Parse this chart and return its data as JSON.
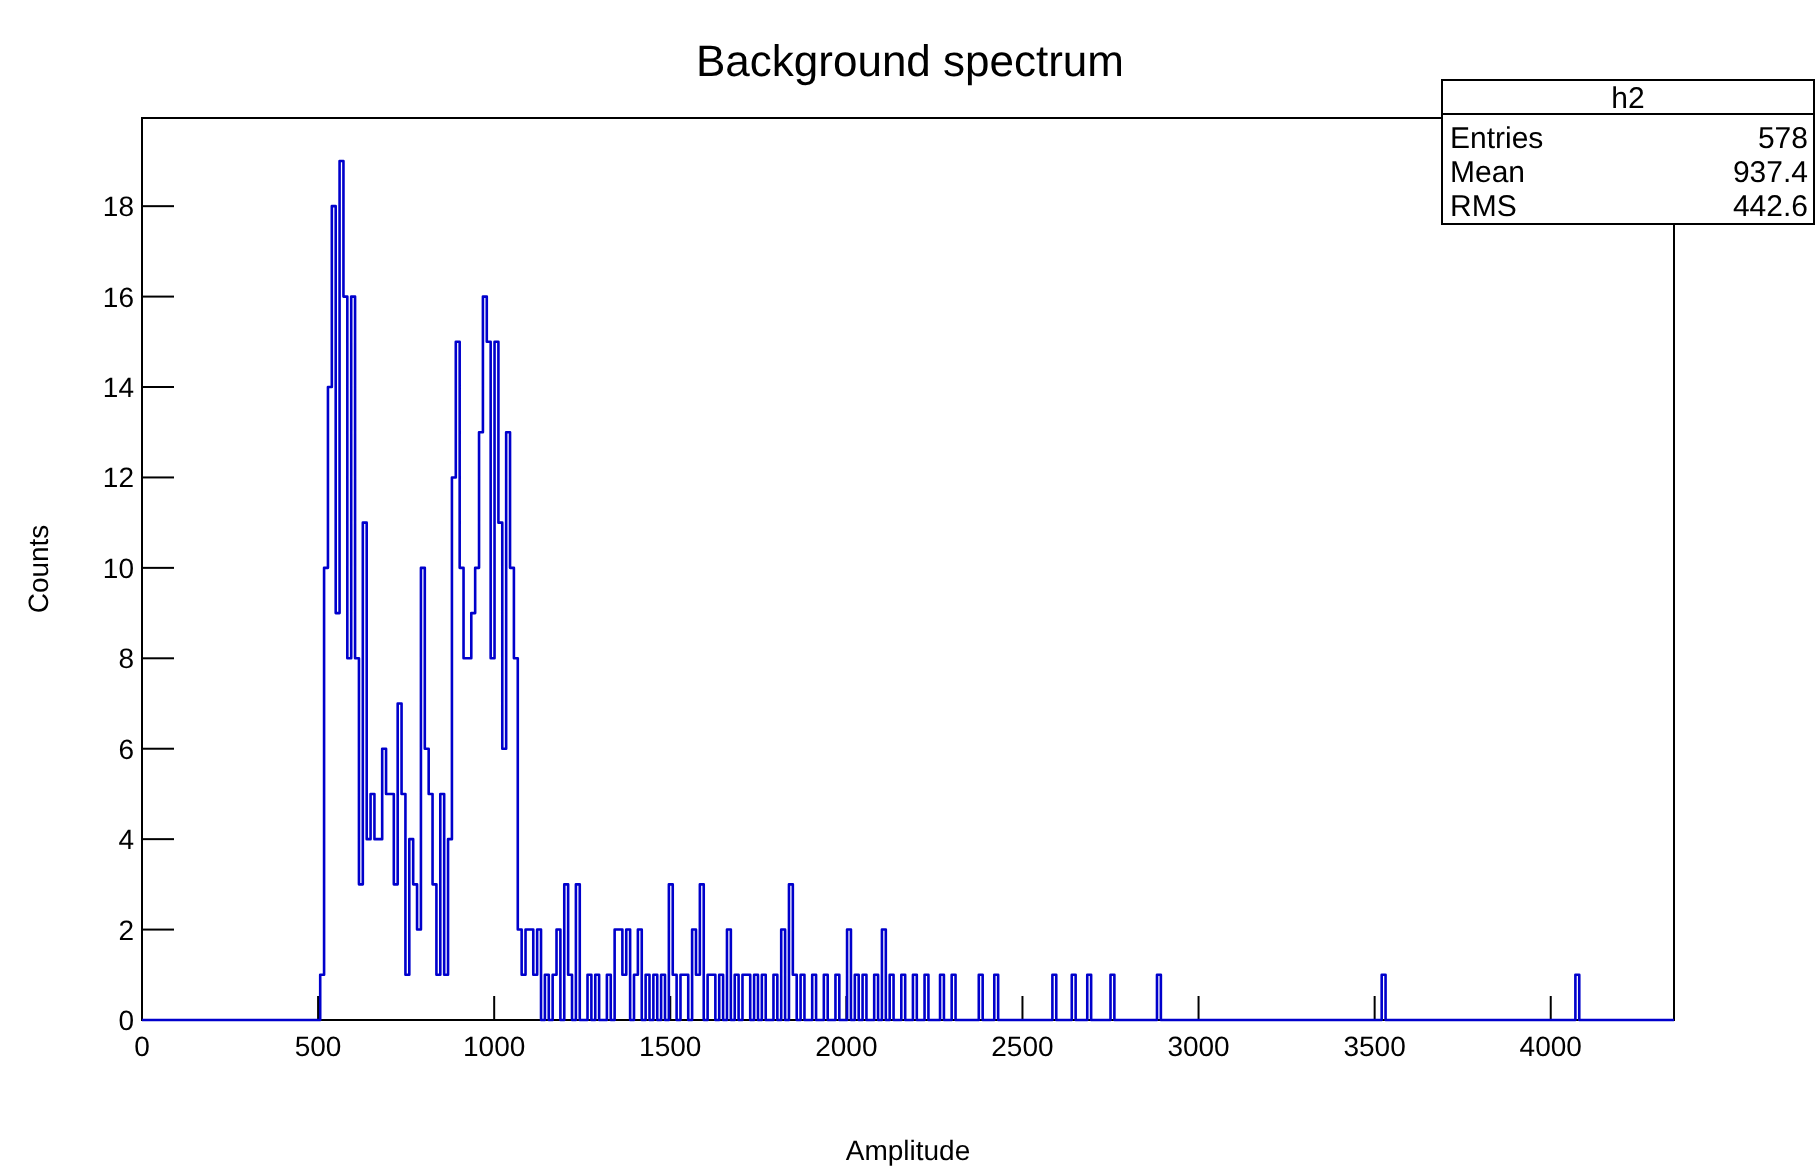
{
  "chart_data": {
    "type": "histogram",
    "title": "Background spectrum",
    "xlabel": "Amplitude",
    "ylabel": "Counts",
    "bins": [
      0,
      506,
      517,
      528,
      539,
      550,
      561,
      572,
      583,
      594,
      605,
      616,
      627,
      638,
      649,
      660,
      671,
      682,
      693,
      704,
      715,
      726,
      737,
      748,
      759,
      770,
      781,
      792,
      803,
      814,
      825,
      836,
      847,
      858,
      869,
      880,
      891,
      902,
      913,
      924,
      935,
      946,
      957,
      968,
      979,
      990,
      1001,
      1012,
      1023,
      1034,
      1045,
      1056,
      1067,
      1078,
      1089,
      1100,
      1111,
      1122,
      1133,
      1144,
      1155,
      1166,
      1177,
      1188,
      1199,
      1210,
      1221,
      1232,
      1243,
      1265,
      1276,
      1287,
      1298,
      1320,
      1331,
      1342,
      1353,
      1364,
      1375,
      1386,
      1397,
      1408,
      1419,
      1430,
      1441,
      1452,
      1463,
      1474,
      1485,
      1496,
      1507,
      1518,
      1529,
      1540,
      1551,
      1562,
      1573,
      1584,
      1595,
      1606,
      1617,
      1628,
      1639,
      1650,
      1661,
      1672,
      1683,
      1694,
      1705,
      1716,
      1727,
      1738,
      1749,
      1760,
      1771,
      1793,
      1804,
      1815,
      1826,
      1837,
      1848,
      1859,
      1870,
      1881,
      1903,
      1914,
      1936,
      1947,
      1969,
      1980,
      2002,
      2013,
      2024,
      2035,
      2046,
      2057,
      2079,
      2090,
      2101,
      2112,
      2123,
      2134,
      2156,
      2167,
      2189,
      2200,
      2222,
      2233,
      2266,
      2277,
      2299,
      2310,
      2376,
      2387,
      2420,
      2431,
      2585,
      2596,
      2640,
      2651,
      2684,
      2695,
      2750,
      2761,
      2882,
      2893,
      3520,
      3531,
      4070,
      4081,
      4350
    ],
    "values": [
      0,
      1,
      10,
      14,
      18,
      9,
      19,
      16,
      8,
      16,
      8,
      3,
      11,
      4,
      5,
      4,
      4,
      6,
      5,
      5,
      3,
      7,
      5,
      1,
      4,
      3,
      2,
      10,
      6,
      5,
      3,
      1,
      5,
      1,
      4,
      12,
      15,
      10,
      8,
      8,
      9,
      10,
      13,
      16,
      15,
      8,
      15,
      11,
      6,
      13,
      10,
      8,
      2,
      1,
      2,
      2,
      1,
      2,
      0,
      1,
      0,
      1,
      2,
      0,
      3,
      1,
      0,
      3,
      0,
      1,
      0,
      1,
      0,
      1,
      0,
      2,
      2,
      1,
      2,
      0,
      1,
      2,
      0,
      1,
      0,
      1,
      0,
      1,
      0,
      3,
      1,
      0,
      1,
      1,
      0,
      2,
      1,
      3,
      0,
      1,
      1,
      0,
      1,
      0,
      2,
      0,
      1,
      0,
      1,
      1,
      0,
      1,
      0,
      1,
      0,
      1,
      0,
      2,
      0,
      3,
      1,
      0,
      1,
      0,
      1,
      0,
      1,
      0,
      1,
      0,
      2,
      0,
      1,
      0,
      1,
      0,
      1,
      0,
      2,
      0,
      1,
      0,
      1,
      0,
      1,
      0,
      1,
      0,
      1,
      0,
      1,
      0,
      1,
      0,
      1,
      0,
      1,
      0,
      1,
      0,
      1,
      0,
      1,
      0,
      1,
      0,
      1,
      0,
      1,
      0
    ],
    "color": "#0000cc",
    "xlim": [
      0,
      4350
    ],
    "xticks": [
      0,
      500,
      1000,
      1500,
      2000,
      2500,
      3000,
      3500,
      4000
    ],
    "ylim": [
      0,
      19.95
    ],
    "yticks": [
      0,
      2,
      4,
      6,
      8,
      10,
      12,
      14,
      16,
      18
    ],
    "annotations": [
      "h2",
      "Entries",
      "578",
      "Mean",
      "937.4",
      "RMS",
      "442.6"
    ]
  }
}
